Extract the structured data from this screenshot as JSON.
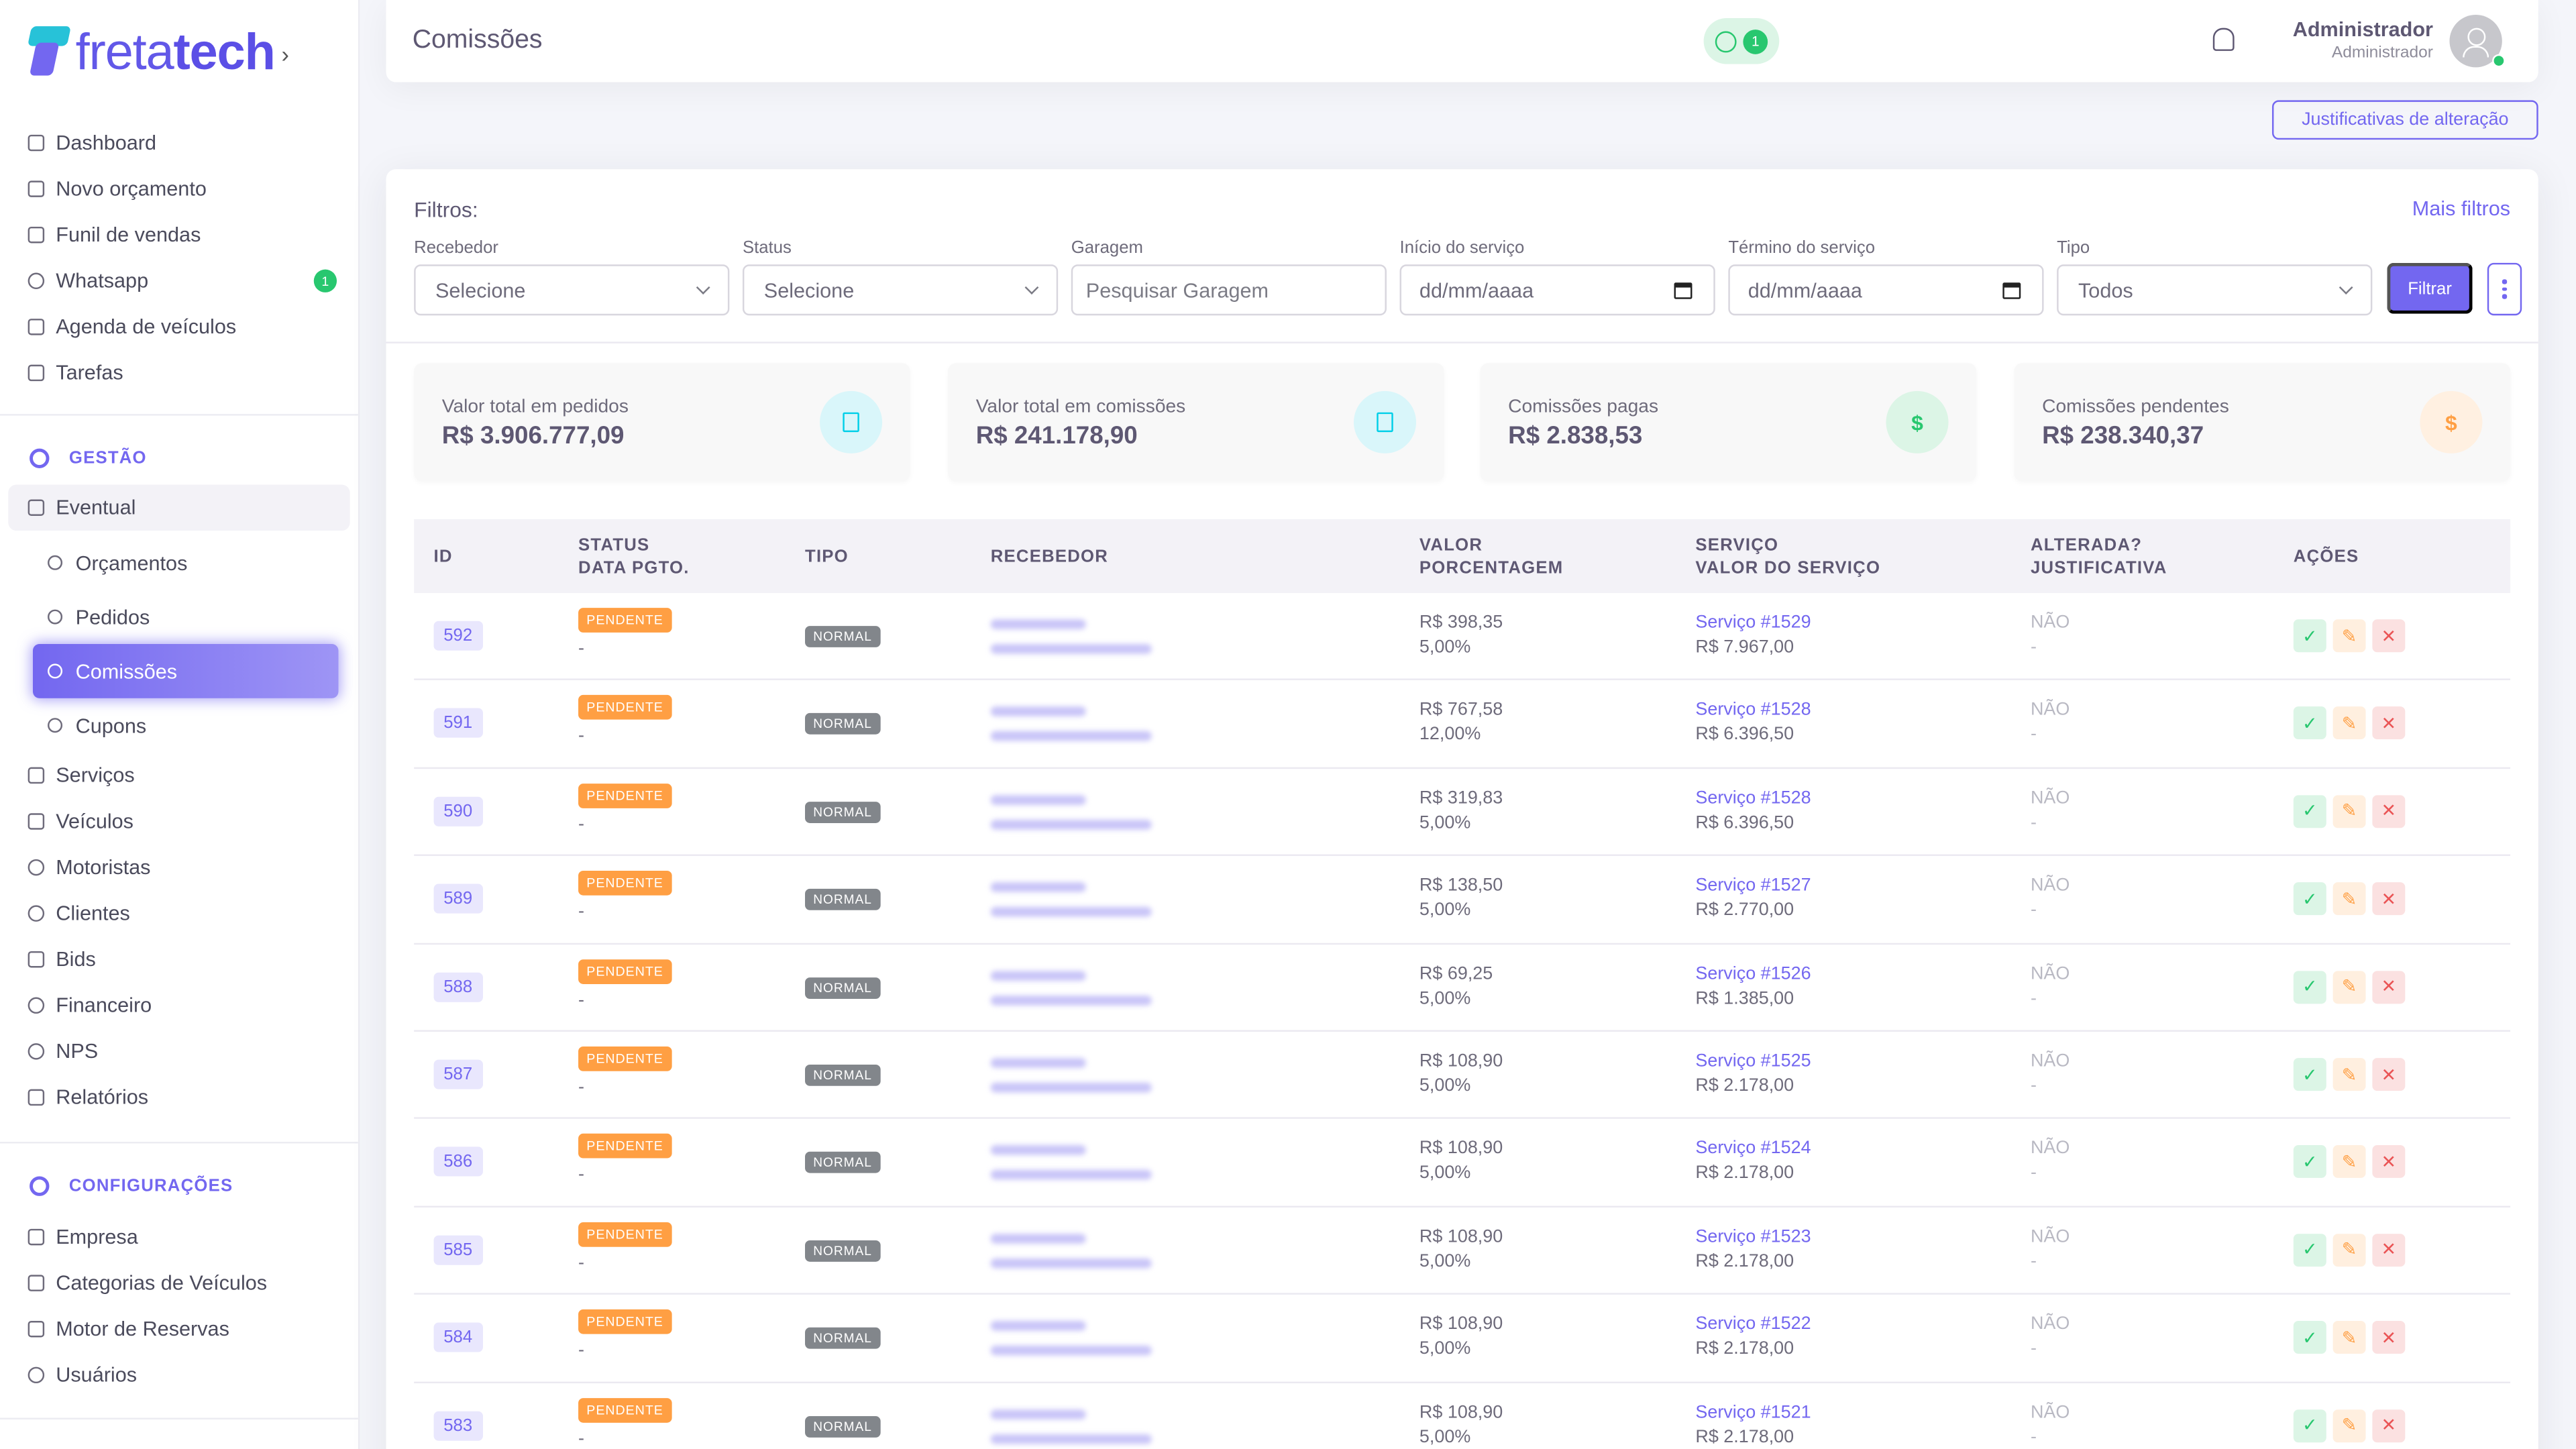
{
  "brand": {
    "name_light": "freta",
    "name_bold": "tech",
    "chevron": "›"
  },
  "sidebar": {
    "top_items": [
      {
        "label": "Dashboard",
        "icon": "home-icon"
      },
      {
        "label": "Novo orçamento",
        "icon": "edit-icon"
      },
      {
        "label": "Funil de vendas",
        "icon": "funnel-icon"
      },
      {
        "label": "Whatsapp",
        "icon": "whatsapp-icon",
        "badge": "1"
      },
      {
        "label": "Agenda de veículos",
        "icon": "calendar-icon"
      },
      {
        "label": "Tarefas",
        "icon": "list-icon"
      }
    ],
    "gestao_title": "GESTÃO",
    "group_label": "Eventual",
    "sub_items": [
      "Orçamentos",
      "Pedidos",
      "Comissões",
      "Cupons"
    ],
    "gestao_items": [
      "Serviços",
      "Veículos",
      "Motoristas",
      "Clientes",
      "Bids",
      "Financeiro",
      "NPS",
      "Relatórios"
    ],
    "config_title": "CONFIGURAÇÕES",
    "config_items": [
      "Empresa",
      "Categorias de Veículos",
      "Motor de Reservas",
      "Usuários"
    ]
  },
  "header": {
    "title": "Comissões",
    "whatsapp_count": "1",
    "user_name": "Administrador",
    "user_role": "Administrador"
  },
  "justificativas_label": "Justificativas de alteração",
  "filters": {
    "title": "Filtros:",
    "more": "Mais filtros",
    "recebedor_label": "Recebedor",
    "recebedor_value": "Selecione",
    "status_label": "Status",
    "status_value": "Selecione",
    "garagem_label": "Garagem",
    "garagem_placeholder": "Pesquisar Garagem",
    "inicio_label": "Início do serviço",
    "inicio_value": "dd/mm/aaaa",
    "termino_label": "Término do serviço",
    "termino_value": "dd/mm/aaaa",
    "tipo_label": "Tipo",
    "tipo_value": "Todos",
    "filtrar": "Filtrar"
  },
  "stats": [
    {
      "label": "Valor total em pedidos",
      "value": "R$ 3.906.777,09",
      "color": "#00cfe8",
      "bg": "#d9f6fa",
      "icon": "document-icon"
    },
    {
      "label": "Valor total em comissões",
      "value": "R$ 241.178,90",
      "color": "#00cfe8",
      "bg": "#d9f6fa",
      "icon": "document-icon"
    },
    {
      "label": "Comissões pagas",
      "value": "R$ 2.838,53",
      "color": "#28c76f",
      "bg": "#dcf5e6",
      "icon": "dollar-icon"
    },
    {
      "label": "Comissões pendentes",
      "value": "R$ 238.340,37",
      "color": "#ff9f43",
      "bg": "#fff0e1",
      "icon": "dollar-icon"
    }
  ],
  "table": {
    "headers": {
      "id": "ID",
      "status": "STATUS",
      "data_pgto": "DATA PGTO.",
      "tipo": "TIPO",
      "recebedor": "RECEBEDOR",
      "valor": "VALOR",
      "porcentagem": "PORCENTAGEM",
      "servico": "SERVIÇO",
      "valor_servico": "VALOR DO SERVIÇO",
      "alterada": "ALTERADA?",
      "justificativa": "JUSTIFICATIVA",
      "acoes": "AÇÕES"
    },
    "rows": [
      {
        "id": "592",
        "status": "PENDENTE",
        "data_pgto": "-",
        "tipo": "NORMAL",
        "valor": "R$ 398,35",
        "porcentagem": "5,00%",
        "servico": "Serviço #1529",
        "valor_servico": "R$ 7.967,00",
        "alterada": "NÃO",
        "justificativa": "-"
      },
      {
        "id": "591",
        "status": "PENDENTE",
        "data_pgto": "-",
        "tipo": "NORMAL",
        "valor": "R$ 767,58",
        "porcentagem": "12,00%",
        "servico": "Serviço #1528",
        "valor_servico": "R$ 6.396,50",
        "alterada": "NÃO",
        "justificativa": "-"
      },
      {
        "id": "590",
        "status": "PENDENTE",
        "data_pgto": "-",
        "tipo": "NORMAL",
        "valor": "R$ 319,83",
        "porcentagem": "5,00%",
        "servico": "Serviço #1528",
        "valor_servico": "R$ 6.396,50",
        "alterada": "NÃO",
        "justificativa": "-"
      },
      {
        "id": "589",
        "status": "PENDENTE",
        "data_pgto": "-",
        "tipo": "NORMAL",
        "valor": "R$ 138,50",
        "porcentagem": "5,00%",
        "servico": "Serviço #1527",
        "valor_servico": "R$ 2.770,00",
        "alterada": "NÃO",
        "justificativa": "-"
      },
      {
        "id": "588",
        "status": "PENDENTE",
        "data_pgto": "-",
        "tipo": "NORMAL",
        "valor": "R$ 69,25",
        "porcentagem": "5,00%",
        "servico": "Serviço #1526",
        "valor_servico": "R$ 1.385,00",
        "alterada": "NÃO",
        "justificativa": "-"
      },
      {
        "id": "587",
        "status": "PENDENTE",
        "data_pgto": "-",
        "tipo": "NORMAL",
        "valor": "R$ 108,90",
        "porcentagem": "5,00%",
        "servico": "Serviço #1525",
        "valor_servico": "R$ 2.178,00",
        "alterada": "NÃO",
        "justificativa": "-"
      },
      {
        "id": "586",
        "status": "PENDENTE",
        "data_pgto": "-",
        "tipo": "NORMAL",
        "valor": "R$ 108,90",
        "porcentagem": "5,00%",
        "servico": "Serviço #1524",
        "valor_servico": "R$ 2.178,00",
        "alterada": "NÃO",
        "justificativa": "-"
      },
      {
        "id": "585",
        "status": "PENDENTE",
        "data_pgto": "-",
        "tipo": "NORMAL",
        "valor": "R$ 108,90",
        "porcentagem": "5,00%",
        "servico": "Serviço #1523",
        "valor_servico": "R$ 2.178,00",
        "alterada": "NÃO",
        "justificativa": "-"
      },
      {
        "id": "584",
        "status": "PENDENTE",
        "data_pgto": "-",
        "tipo": "NORMAL",
        "valor": "R$ 108,90",
        "porcentagem": "5,00%",
        "servico": "Serviço #1522",
        "valor_servico": "R$ 2.178,00",
        "alterada": "NÃO",
        "justificativa": "-"
      },
      {
        "id": "583",
        "status": "PENDENTE",
        "data_pgto": "-",
        "tipo": "NORMAL",
        "valor": "R$ 108,90",
        "porcentagem": "5,00%",
        "servico": "Serviço #1521",
        "valor_servico": "R$ 2.178,00",
        "alterada": "NÃO",
        "justificativa": "-"
      }
    ]
  }
}
